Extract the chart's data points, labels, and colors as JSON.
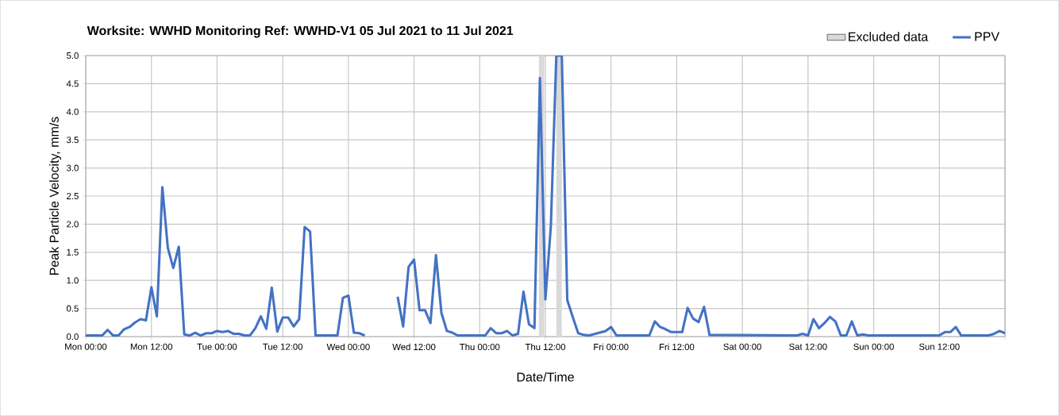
{
  "chart_data": {
    "type": "line",
    "title": "**Worksite: WWHD    Monitoring Ref: WWHD-V1     05 Jul 2021 to 11 Jul 2021**",
    "xlabel": "Date/Time",
    "ylabel": "Peak Particle Velocity, mm/s",
    "xlim": [
      "2021-07-05T00:00",
      "2021-07-12T00:00"
    ],
    "ylim": [
      0,
      5
    ],
    "xticks": [
      {
        "value": "2021-07-05T00:00",
        "label": "Mon 00:00"
      },
      {
        "value": "2021-07-05T12:00",
        "label": "Mon 12:00"
      },
      {
        "value": "2021-07-06T00:00",
        "label": "Tue 00:00"
      },
      {
        "value": "2021-07-06T12:00",
        "label": "Tue 12:00"
      },
      {
        "value": "2021-07-07T00:00",
        "label": "Wed 00:00"
      },
      {
        "value": "2021-07-07T12:00",
        "label": "Wed 12:00"
      },
      {
        "value": "2021-07-08T00:00",
        "label": "Thu 00:00"
      },
      {
        "value": "2021-07-08T12:00",
        "label": "Thu 12:00"
      },
      {
        "value": "2021-07-09T00:00",
        "label": "Fri 00:00"
      },
      {
        "value": "2021-07-09T12:00",
        "label": "Fri 12:00"
      },
      {
        "value": "2021-07-10T00:00",
        "label": "Sat 00:00"
      },
      {
        "value": "2021-07-10T12:00",
        "label": "Sat 12:00"
      },
      {
        "value": "2021-07-11T00:00",
        "label": "Sun 00:00"
      },
      {
        "value": "2021-07-11T12:00",
        "label": "Sun 12:00"
      },
      {
        "value": "2021-07-12T00:00",
        "label": null
      }
    ],
    "yticks": [
      {
        "value": 0,
        "label": "0.0"
      },
      {
        "value": 0.5,
        "label": "0.5"
      },
      {
        "value": 1,
        "label": "1.0"
      },
      {
        "value": 1.5,
        "label": "1.5"
      },
      {
        "value": 2,
        "label": "2.0"
      },
      {
        "value": 2.5,
        "label": "2.5"
      },
      {
        "value": 3,
        "label": "3.0"
      },
      {
        "value": 3.5,
        "label": "3.5"
      },
      {
        "value": 4,
        "label": "4.0"
      },
      {
        "value": 4.5,
        "label": "4.5"
      },
      {
        "value": 5,
        "label": "5.0"
      }
    ],
    "grid": true,
    "legend": "top right",
    "marker": "none",
    "line_style": "solid",
    "bands": [
      {
        "axis": "x",
        "from": "2021-07-08T10:48",
        "to": "2021-07-08T11:48",
        "label": "Excluded data",
        "color": "#d9d9d9"
      },
      {
        "axis": "x",
        "from": "2021-07-08T14:00",
        "to": "2021-07-08T15:00",
        "color": "#d9d9d9"
      }
    ],
    "series": [
      {
        "name": "PPV",
        "color": "#4472c4",
        "x": [
          "2021-07-05T00:00",
          "2021-07-05T02:00",
          "2021-07-05T03:00",
          "2021-07-05T04:00",
          "2021-07-05T05:00",
          "2021-07-05T06:00",
          "2021-07-05T07:00",
          "2021-07-05T08:00",
          "2021-07-05T09:00",
          "2021-07-05T10:00",
          "2021-07-05T11:00",
          "2021-07-05T12:00",
          "2021-07-05T13:00",
          "2021-07-05T14:00",
          "2021-07-05T15:00",
          "2021-07-05T16:00",
          "2021-07-05T17:00",
          "2021-07-05T18:00",
          "2021-07-05T19:00",
          "2021-07-05T20:00",
          "2021-07-05T21:00",
          "2021-07-05T22:00",
          "2021-07-05T23:00",
          "2021-07-06T00:00",
          "2021-07-06T01:00",
          "2021-07-06T02:00",
          "2021-07-06T03:00",
          "2021-07-06T04:00",
          "2021-07-06T05:00",
          "2021-07-06T06:00",
          "2021-07-06T07:00",
          "2021-07-06T08:00",
          "2021-07-06T09:00",
          "2021-07-06T10:00",
          "2021-07-06T11:00",
          "2021-07-06T12:00",
          "2021-07-06T13:00",
          "2021-07-06T14:00",
          "2021-07-06T15:00",
          "2021-07-06T16:00",
          "2021-07-06T17:00",
          "2021-07-06T18:00",
          "2021-07-06T22:00",
          "2021-07-06T23:00",
          "2021-07-07T00:00",
          "2021-07-07T01:00",
          "2021-07-07T02:00",
          "2021-07-07T03:00",
          "2021-07-07T04:00",
          "2021-07-07T09:00",
          "2021-07-07T10:00",
          "2021-07-07T11:00",
          "2021-07-07T12:00",
          "2021-07-07T13:00",
          "2021-07-07T14:00",
          "2021-07-07T15:00",
          "2021-07-07T16:00",
          "2021-07-07T17:00",
          "2021-07-07T18:00",
          "2021-07-07T19:00",
          "2021-07-07T20:00",
          "2021-07-08T01:00",
          "2021-07-08T02:00",
          "2021-07-08T03:00",
          "2021-07-08T04:00",
          "2021-07-08T05:00",
          "2021-07-08T06:00",
          "2021-07-08T07:00",
          "2021-07-08T08:00",
          "2021-07-08T09:00",
          "2021-07-08T10:00",
          "2021-07-08T11:00",
          "2021-07-08T12:00",
          "2021-07-08T13:00",
          "2021-07-08T14:00",
          "2021-07-08T15:00",
          "2021-07-08T16:00",
          "2021-07-08T17:00",
          "2021-07-08T18:00",
          "2021-07-08T19:00",
          "2021-07-08T20:00",
          "2021-07-08T23:00",
          "2021-07-09T00:00",
          "2021-07-09T01:00",
          "2021-07-09T07:00",
          "2021-07-09T08:00",
          "2021-07-09T09:00",
          "2021-07-09T10:00",
          "2021-07-09T11:00",
          "2021-07-09T12:00",
          "2021-07-09T13:00",
          "2021-07-09T14:00",
          "2021-07-09T15:00",
          "2021-07-09T16:00",
          "2021-07-09T17:00",
          "2021-07-09T18:00",
          "2021-07-10T10:00",
          "2021-07-10T11:00",
          "2021-07-10T12:00",
          "2021-07-10T13:00",
          "2021-07-10T14:00",
          "2021-07-10T15:00",
          "2021-07-10T16:00",
          "2021-07-10T17:00",
          "2021-07-10T18:00",
          "2021-07-10T19:00",
          "2021-07-10T20:00",
          "2021-07-10T21:00",
          "2021-07-10T22:00",
          "2021-07-10T23:00",
          "2021-07-11T12:00",
          "2021-07-11T13:00",
          "2021-07-11T14:00",
          "2021-07-11T15:00",
          "2021-07-11T16:00",
          "2021-07-11T21:00",
          "2021-07-11T22:00",
          "2021-07-11T23:00",
          "2021-07-12T00:00"
        ],
        "values": [
          0.02,
          0.02,
          0.02,
          0.12,
          0.02,
          0.02,
          0.13,
          0.17,
          0.25,
          0.31,
          0.29,
          0.88,
          0.36,
          2.66,
          1.58,
          1.22,
          1.6,
          0.04,
          0.02,
          0.07,
          0.02,
          0.06,
          0.06,
          0.1,
          0.08,
          0.1,
          0.05,
          0.05,
          0.02,
          0.02,
          0.15,
          0.36,
          0.14,
          0.87,
          0.09,
          0.34,
          0.34,
          0.18,
          0.31,
          1.95,
          1.87,
          0.02,
          0.02,
          0.69,
          0.73,
          0.07,
          0.06,
          0.02,
          null,
          0.71,
          0.18,
          1.24,
          1.37,
          0.47,
          0.47,
          0.24,
          1.45,
          0.42,
          0.1,
          0.07,
          0.02,
          0.02,
          0.15,
          0.06,
          0.06,
          0.1,
          0.02,
          0.05,
          0.8,
          0.22,
          0.15,
          4.6,
          0.66,
          1.96,
          5.0,
          5.0,
          0.65,
          0.35,
          0.06,
          0.03,
          0.02,
          0.1,
          0.17,
          0.02,
          0.02,
          0.27,
          0.17,
          0.13,
          0.08,
          0.08,
          0.08,
          0.51,
          0.32,
          0.26,
          0.53,
          0.03,
          0.02,
          0.05,
          0.02,
          0.31,
          0.15,
          0.24,
          0.35,
          0.27,
          0.02,
          0.02,
          0.27,
          0.02,
          0.04,
          0.02,
          0.02,
          0.08,
          0.08,
          0.17,
          0.02,
          0.02,
          0.05,
          0.1,
          0.06
        ]
      }
    ]
  }
}
